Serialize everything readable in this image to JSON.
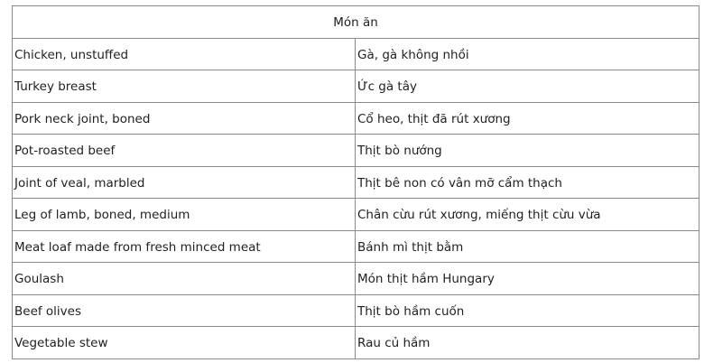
{
  "header": "Món ăn",
  "rows": [
    [
      "Chicken, unstuffed",
      "Gà, gà không nhồi"
    ],
    [
      "Turkey breast",
      "Ức gà tây"
    ],
    [
      "Pork neck joint, boned",
      "Cổ heo, thịt đã rút xương"
    ],
    [
      "Pot-roasted beef",
      "Thịt bò nướng"
    ],
    [
      "Joint of veal, marbled",
      "Thịt bê non có vân mỡ cẩm thạch"
    ],
    [
      "Leg of lamb, boned, medium",
      "Chân cừu rút xương, miếng thịt cừu vừa"
    ],
    [
      "Meat loaf made from fresh minced meat",
      "Bánh mì thịt bằm"
    ],
    [
      "Goulash",
      "Món thịt hầm Hungary"
    ],
    [
      "Beef olives",
      "Thịt bò hầm cuốn"
    ],
    [
      "Vegetable stew",
      "Rau củ hầm"
    ]
  ]
}
